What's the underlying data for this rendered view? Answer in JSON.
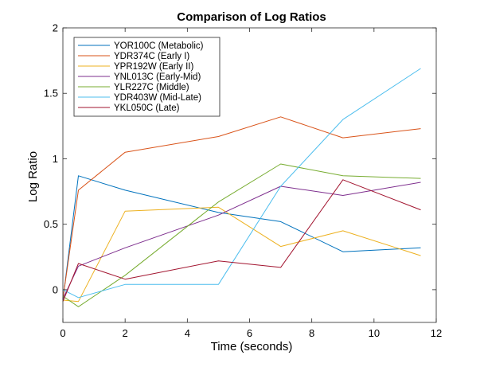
{
  "chart_data": {
    "type": "line",
    "title": "Comparison of Log Ratios",
    "xlabel": "Time (seconds)",
    "ylabel": "Log Ratio",
    "xlim": [
      0,
      12
    ],
    "ylim": [
      -0.25,
      2
    ],
    "xticks": [
      0,
      2,
      4,
      6,
      8,
      10,
      12
    ],
    "yticks": [
      0,
      0.5,
      1,
      1.5,
      2
    ],
    "xtick_labels": [
      "0",
      "2",
      "4",
      "6",
      "8",
      "10",
      "12"
    ],
    "ytick_labels": [
      "0",
      "0.5",
      "1",
      "1.5",
      "2"
    ],
    "grid": false,
    "legend_position": "top-left",
    "x": [
      0,
      0.5,
      2,
      5,
      7,
      9,
      11.5
    ],
    "series": [
      {
        "name": "YOR100C (Metabolic)",
        "color": "#0072BD",
        "values": [
          -0.08,
          0.87,
          0.76,
          0.59,
          0.52,
          0.29,
          0.32
        ]
      },
      {
        "name": "YDR374C (Early I)",
        "color": "#D95319",
        "values": [
          -0.07,
          0.76,
          1.05,
          1.17,
          1.32,
          1.16,
          1.23
        ]
      },
      {
        "name": "YPR192W (Early II)",
        "color": "#EDB120",
        "values": [
          -0.08,
          -0.09,
          0.6,
          0.63,
          0.33,
          0.45,
          0.26
        ]
      },
      {
        "name": "YNL013C (Early-Mid)",
        "color": "#7E2F8E",
        "values": [
          -0.07,
          0.18,
          0.32,
          0.57,
          0.79,
          0.72,
          0.82
        ]
      },
      {
        "name": "YLR227C (Middle)",
        "color": "#77AC30",
        "values": [
          -0.05,
          -0.13,
          0.11,
          0.67,
          0.96,
          0.87,
          0.85
        ]
      },
      {
        "name": "YDR403W (Mid-Late)",
        "color": "#4DBEEE",
        "values": [
          0.0,
          -0.06,
          0.04,
          0.04,
          0.79,
          1.3,
          1.69
        ]
      },
      {
        "name": "YKL050C (Late)",
        "color": "#A2142F",
        "values": [
          -0.09,
          0.2,
          0.08,
          0.22,
          0.17,
          0.84,
          0.61
        ]
      }
    ]
  }
}
